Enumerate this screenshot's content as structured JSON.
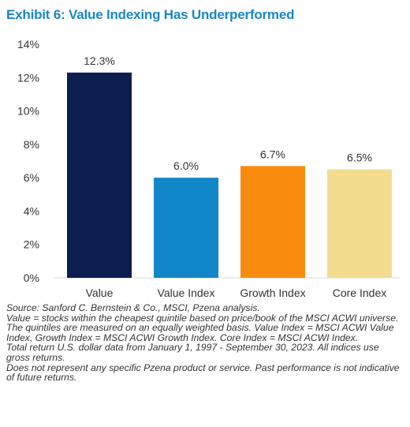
{
  "title": "Exhibit 6: Value Indexing Has Underperformed",
  "colors": {
    "title": "#1a86c8",
    "axis_text": "#333333",
    "grid": "#d9d9d9"
  },
  "chart_data": {
    "type": "bar",
    "title": "Exhibit 6: Value Indexing Has Underperformed",
    "xlabel": "",
    "ylabel": "",
    "ylim": [
      0,
      14
    ],
    "yticks": [
      "0%",
      "2%",
      "4%",
      "6%",
      "8%",
      "10%",
      "12%",
      "14%"
    ],
    "ytick_values": [
      0,
      2,
      4,
      6,
      8,
      10,
      12,
      14
    ],
    "grid": false,
    "categories": [
      "Value",
      "Value Index",
      "Growth Index",
      "Core Index"
    ],
    "values": [
      12.3,
      6.0,
      6.7,
      6.5
    ],
    "data_labels": [
      "12.3%",
      "6.0%",
      "6.7%",
      "6.5%"
    ],
    "bar_colors": [
      "#0b1f4f",
      "#1287c8",
      "#f98c0e",
      "#f4dc8f"
    ]
  },
  "footnotes": [
    "Source: Sanford C. Bernstein & Co., MSCI, Pzena analysis.",
    "Value = stocks within the cheapest quintile based on price/book of the MSCI ACWI universe. The quintiles are measured on an equally weighted basis. Value Index = MSCI ACWI Value Index, Growth Index = MSCI ACWI Growth Index. Core Index = MSCI ACWI Index.",
    "Total return U.S. dollar data from January 1, 1997 - September 30, 2023.  All indices use gross returns.",
    "Does not represent any specific Pzena product or service. Past performance is not indicative of future returns."
  ]
}
